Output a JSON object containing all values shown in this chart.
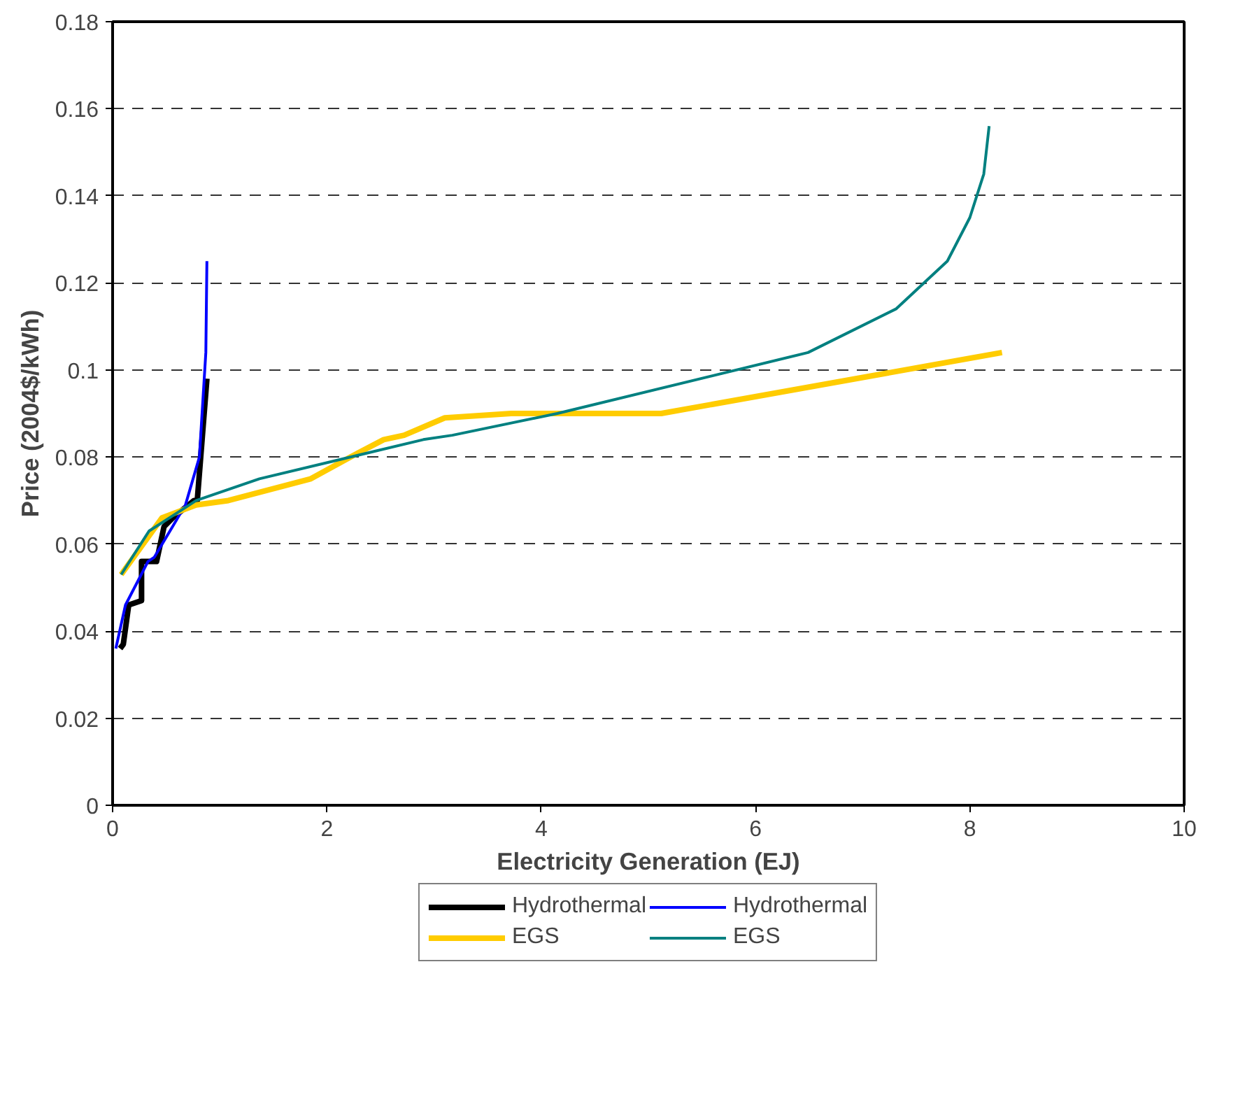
{
  "chart_data": {
    "type": "line",
    "xlabel": "Electricity Generation (EJ)",
    "ylabel": "Price (2004$/kWh)",
    "xlim": [
      0,
      10
    ],
    "xticks": [
      0,
      2,
      4,
      6,
      8,
      10
    ],
    "ylim": [
      0,
      0.18
    ],
    "yticks": [
      0,
      0.02,
      0.04,
      0.06,
      0.08,
      0.1,
      0.12,
      0.14,
      0.16,
      0.18
    ],
    "grid": "y",
    "legend": "bottom",
    "marker": "none",
    "line_style": "solid",
    "series": [
      {
        "name": "Hydrothermal",
        "color": "#000000",
        "x": [
          0.07,
          0.1,
          0.15,
          0.27,
          0.27,
          0.41,
          0.48,
          0.56,
          0.76,
          0.79,
          0.88
        ],
        "values": [
          0.036,
          0.037,
          0.046,
          0.047,
          0.056,
          0.056,
          0.064,
          0.066,
          0.07,
          0.07,
          0.098
        ]
      },
      {
        "name": "Hydrothermal",
        "color": "#0000ff",
        "x": [
          0.03,
          0.12,
          0.33,
          0.39,
          0.68,
          0.81,
          0.87,
          0.88
        ],
        "values": [
          0.036,
          0.046,
          0.056,
          0.057,
          0.069,
          0.08,
          0.104,
          0.125
        ]
      },
      {
        "name": "EGS",
        "color": "#ffcc00",
        "x": [
          0.08,
          0.46,
          0.78,
          1.08,
          1.85,
          2.22,
          2.53,
          2.72,
          3.1,
          3.72,
          5.12,
          8.3
        ],
        "values": [
          0.053,
          0.066,
          0.069,
          0.07,
          0.075,
          0.08,
          0.084,
          0.085,
          0.089,
          0.09,
          0.09,
          0.104
        ]
      },
      {
        "name": "EGS",
        "color": "#008080",
        "x": [
          0.08,
          0.34,
          0.78,
          1.37,
          2.22,
          2.9,
          3.17,
          4.15,
          6.49,
          7.31,
          7.79,
          8.0,
          8.13,
          8.18
        ],
        "values": [
          0.053,
          0.063,
          0.07,
          0.075,
          0.08,
          0.084,
          0.085,
          0.09,
          0.104,
          0.114,
          0.125,
          0.135,
          0.145,
          0.156
        ]
      }
    ]
  }
}
